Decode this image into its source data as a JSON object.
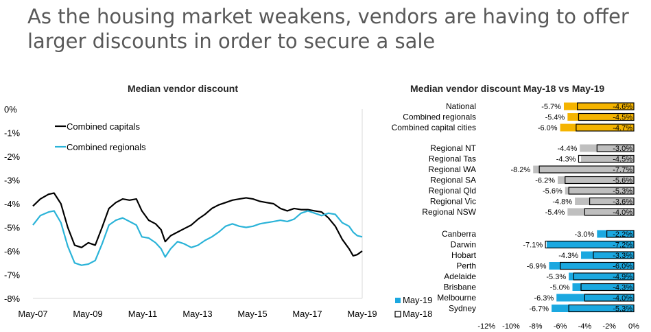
{
  "headline": "As the housing market weakens, vendors are having to offer larger discounts in order to secure a sale",
  "chart_data": [
    {
      "type": "line",
      "title": "Median vendor discount",
      "xlabel": "",
      "ylabel": "",
      "x_ticks": [
        "May-07",
        "May-09",
        "May-11",
        "May-13",
        "May-15",
        "May-17",
        "May-19"
      ],
      "y_ticks": [
        "0%",
        "-1%",
        "-2%",
        "-3%",
        "-4%",
        "-5%",
        "-6%",
        "-7%",
        "-8%"
      ],
      "ylim": [
        -8,
        0
      ],
      "x_domain": [
        2007.33,
        2019.33
      ],
      "legend": "top-left",
      "series": [
        {
          "name": "Combined capitals",
          "color": "#000000",
          "points": [
            [
              2007.33,
              -4.1
            ],
            [
              2007.6,
              -3.8
            ],
            [
              2007.9,
              -3.6
            ],
            [
              2008.1,
              -3.55
            ],
            [
              2008.35,
              -4.0
            ],
            [
              2008.6,
              -5.0
            ],
            [
              2008.85,
              -5.75
            ],
            [
              2009.1,
              -5.85
            ],
            [
              2009.35,
              -5.65
            ],
            [
              2009.6,
              -5.75
            ],
            [
              2009.85,
              -5.0
            ],
            [
              2010.1,
              -4.2
            ],
            [
              2010.35,
              -3.95
            ],
            [
              2010.6,
              -3.8
            ],
            [
              2010.85,
              -3.85
            ],
            [
              2011.1,
              -3.8
            ],
            [
              2011.3,
              -4.3
            ],
            [
              2011.55,
              -4.7
            ],
            [
              2011.8,
              -4.85
            ],
            [
              2012.0,
              -5.1
            ],
            [
              2012.15,
              -5.6
            ],
            [
              2012.35,
              -5.35
            ],
            [
              2012.6,
              -5.2
            ],
            [
              2012.85,
              -5.05
            ],
            [
              2013.1,
              -4.9
            ],
            [
              2013.35,
              -4.65
            ],
            [
              2013.6,
              -4.45
            ],
            [
              2013.85,
              -4.2
            ],
            [
              2014.1,
              -4.05
            ],
            [
              2014.35,
              -3.95
            ],
            [
              2014.6,
              -3.85
            ],
            [
              2014.85,
              -3.8
            ],
            [
              2015.1,
              -3.75
            ],
            [
              2015.35,
              -3.8
            ],
            [
              2015.6,
              -3.9
            ],
            [
              2015.85,
              -3.95
            ],
            [
              2016.1,
              -4.0
            ],
            [
              2016.35,
              -4.2
            ],
            [
              2016.6,
              -4.3
            ],
            [
              2016.85,
              -4.2
            ],
            [
              2017.1,
              -4.25
            ],
            [
              2017.35,
              -4.25
            ],
            [
              2017.6,
              -4.3
            ],
            [
              2017.85,
              -4.35
            ],
            [
              2018.1,
              -4.6
            ],
            [
              2018.35,
              -4.95
            ],
            [
              2018.6,
              -5.5
            ],
            [
              2018.85,
              -5.9
            ],
            [
              2019.0,
              -6.2
            ],
            [
              2019.15,
              -6.15
            ],
            [
              2019.33,
              -6.0
            ]
          ]
        },
        {
          "name": "Combined regionals",
          "color": "#2AB3D8",
          "points": [
            [
              2007.33,
              -4.9
            ],
            [
              2007.6,
              -4.5
            ],
            [
              2007.9,
              -4.35
            ],
            [
              2008.1,
              -4.3
            ],
            [
              2008.35,
              -4.8
            ],
            [
              2008.6,
              -5.8
            ],
            [
              2008.85,
              -6.5
            ],
            [
              2009.1,
              -6.6
            ],
            [
              2009.35,
              -6.55
            ],
            [
              2009.6,
              -6.4
            ],
            [
              2009.85,
              -5.7
            ],
            [
              2010.1,
              -4.9
            ],
            [
              2010.35,
              -4.7
            ],
            [
              2010.6,
              -4.6
            ],
            [
              2010.85,
              -4.75
            ],
            [
              2011.1,
              -4.9
            ],
            [
              2011.3,
              -5.4
            ],
            [
              2011.55,
              -5.45
            ],
            [
              2011.8,
              -5.65
            ],
            [
              2012.0,
              -5.9
            ],
            [
              2012.15,
              -6.25
            ],
            [
              2012.35,
              -5.9
            ],
            [
              2012.6,
              -5.6
            ],
            [
              2012.85,
              -5.7
            ],
            [
              2013.1,
              -5.85
            ],
            [
              2013.35,
              -5.75
            ],
            [
              2013.6,
              -5.55
            ],
            [
              2013.85,
              -5.4
            ],
            [
              2014.1,
              -5.2
            ],
            [
              2014.35,
              -4.95
            ],
            [
              2014.6,
              -4.85
            ],
            [
              2014.85,
              -4.95
            ],
            [
              2015.1,
              -5.0
            ],
            [
              2015.35,
              -4.95
            ],
            [
              2015.6,
              -4.85
            ],
            [
              2015.85,
              -4.8
            ],
            [
              2016.1,
              -4.75
            ],
            [
              2016.35,
              -4.7
            ],
            [
              2016.6,
              -4.75
            ],
            [
              2016.85,
              -4.65
            ],
            [
              2017.1,
              -4.4
            ],
            [
              2017.35,
              -4.3
            ],
            [
              2017.6,
              -4.4
            ],
            [
              2017.85,
              -4.5
            ],
            [
              2018.1,
              -4.4
            ],
            [
              2018.35,
              -4.45
            ],
            [
              2018.6,
              -4.8
            ],
            [
              2018.85,
              -4.95
            ],
            [
              2019.0,
              -5.2
            ],
            [
              2019.15,
              -5.35
            ],
            [
              2019.33,
              -5.4
            ]
          ]
        }
      ]
    },
    {
      "type": "bar",
      "orientation": "horizontal",
      "title": "Median vendor discount May-18 vs May-19",
      "x_ticks": [
        "-12%",
        "-10%",
        "-8%",
        "-6%",
        "-4%",
        "-2%",
        "0%"
      ],
      "xlim": [
        -12,
        0
      ],
      "legend": "bottom-left",
      "series_names": [
        "May-19",
        "May-18"
      ],
      "groups": [
        {
          "color": "#F5B400",
          "items": [
            {
              "label": "National",
              "may19": -5.7,
              "may18": -4.6,
              "may19_label": "-5.7%",
              "may18_label": "-4.6%"
            },
            {
              "label": "Combined regionals",
              "may19": -5.4,
              "may18": -4.5,
              "may19_label": "-5.4%",
              "may18_label": "-4.5%"
            },
            {
              "label": "Combined capital cities",
              "may19": -6.0,
              "may18": -4.7,
              "may19_label": "-6.0%",
              "may18_label": "-4.7%"
            }
          ]
        },
        {
          "color": "#BFBFBF",
          "items": [
            {
              "label": "Regional NT",
              "may19": -4.4,
              "may18": -3.0,
              "may19_label": "-4.4%",
              "may18_label": "-3.0%"
            },
            {
              "label": "Regional Tas",
              "may19": -4.3,
              "may18": -4.5,
              "may19_label": "-4.3%",
              "may18_label": "-4.5%"
            },
            {
              "label": "Regional WA",
              "may19": -8.2,
              "may18": -7.7,
              "may19_label": "-8.2%",
              "may18_label": "-7.7%"
            },
            {
              "label": "Regional SA",
              "may19": -6.2,
              "may18": -5.6,
              "may19_label": "-6.2%",
              "may18_label": "-5.6%"
            },
            {
              "label": "Regional Qld",
              "may19": -5.6,
              "may18": -5.3,
              "may19_label": "-5.6%",
              "may18_label": "-5.3%"
            },
            {
              "label": "Regional Vic",
              "may19": -4.8,
              "may18": -3.6,
              "may19_label": "-4.8%",
              "may18_label": "-3.6%"
            },
            {
              "label": "Regional NSW",
              "may19": -5.4,
              "may18": -4.0,
              "may19_label": "-5.4%",
              "may18_label": "-4.0%"
            }
          ]
        },
        {
          "color": "#1BA8E0",
          "items": [
            {
              "label": "Canberra",
              "may19": -3.0,
              "may18": -2.2,
              "may19_label": "-3.0%",
              "may18_label": "-2.2%"
            },
            {
              "label": "Darwin",
              "may19": -7.1,
              "may18": -7.2,
              "may19_label": "-7.1%",
              "may18_label": "-7.2%"
            },
            {
              "label": "Hobart",
              "may19": -4.3,
              "may18": -3.3,
              "may19_label": "-4.3%",
              "may18_label": "-3.3%"
            },
            {
              "label": "Perth",
              "may19": -6.9,
              "may18": -6.0,
              "may19_label": "-6.9%",
              "may18_label": "-6.0%"
            },
            {
              "label": "Adelaide",
              "may19": -5.3,
              "may18": -4.9,
              "may19_label": "-5.3%",
              "may18_label": "-4.9%"
            },
            {
              "label": "Brisbane",
              "may19": -5.0,
              "may18": -4.3,
              "may19_label": "-5.0%",
              "may18_label": "-4.3%"
            },
            {
              "label": "Melbourne",
              "may19": -6.3,
              "may18": -4.0,
              "may19_label": "-6.3%",
              "may18_label": "-4.0%"
            },
            {
              "label": "Sydney",
              "may19": -6.7,
              "may18": -5.3,
              "may19_label": "-6.7%",
              "may18_label": "-5.3%"
            }
          ]
        }
      ]
    }
  ]
}
